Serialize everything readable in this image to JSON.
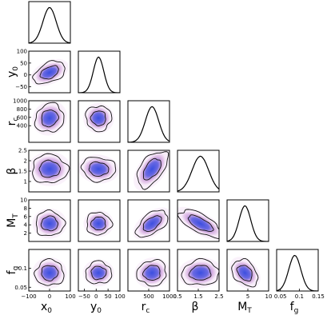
{
  "chart_data": {
    "type": "corner",
    "parameters": [
      {
        "key": "x0",
        "base": "x",
        "sub": "0",
        "range": [
          -100,
          100
        ],
        "ticks": [
          {
            "v": -100,
            "t": "−100"
          },
          {
            "v": 0,
            "t": "0"
          },
          {
            "v": 100,
            "t": "100"
          }
        ],
        "peak": 0,
        "sigma": 32
      },
      {
        "key": "y0",
        "base": "y",
        "sub": "0",
        "range": [
          -75,
          100
        ],
        "ticks": [
          {
            "v": -50,
            "t": "−50"
          },
          {
            "v": 0,
            "t": "0"
          },
          {
            "v": 50,
            "t": "50"
          },
          {
            "v": 100,
            "t": "100"
          }
        ],
        "peak": 10,
        "sigma": 22
      },
      {
        "key": "rc",
        "base": "r",
        "sub": "c",
        "range": [
          0,
          1000
        ],
        "ticks": [
          {
            "v": 400,
            "t": "400"
          },
          {
            "v": 600,
            "t": "600"
          },
          {
            "v": 800,
            "t": "800"
          },
          {
            "v": 1000,
            "t": "1000"
          }
        ],
        "xticks": [
          {
            "v": 500,
            "t": "500"
          },
          {
            "v": 1000,
            "t": "1000"
          }
        ],
        "peak": 580,
        "sigma": 160
      },
      {
        "key": "beta",
        "base": "β",
        "sub": "",
        "range": [
          0.5,
          2.5
        ],
        "ticks": [
          {
            "v": 1,
            "t": "1"
          },
          {
            "v": 1.5,
            "t": "1.5"
          },
          {
            "v": 2,
            "t": "2"
          },
          {
            "v": 2.5,
            "t": "2.5"
          }
        ],
        "xticks": [
          {
            "v": 0.5,
            "t": "0.5"
          },
          {
            "v": 1.5,
            "t": "1.5"
          },
          {
            "v": 2.5,
            "t": "2.5"
          }
        ],
        "peak": 1.6,
        "sigma": 0.4
      },
      {
        "key": "MT",
        "base": "M",
        "sub": "T",
        "range": [
          0,
          10
        ],
        "ticks": [
          {
            "v": 2,
            "t": "2"
          },
          {
            "v": 4,
            "t": "4"
          },
          {
            "v": 6,
            "t": "6"
          },
          {
            "v": 8,
            "t": "8"
          },
          {
            "v": 10,
            "t": "10"
          }
        ],
        "xticks": [
          {
            "v": 5,
            "t": "5"
          },
          {
            "v": 10,
            "t": "10"
          }
        ],
        "peak": 4.3,
        "sigma": 1.4
      },
      {
        "key": "fg",
        "base": "f",
        "sub": "g",
        "range": [
          0.04,
          0.15
        ],
        "ticks": [
          {
            "v": 0.05,
            "t": "0.05"
          },
          {
            "v": 0.1,
            "t": "0.1"
          }
        ],
        "xticks": [
          {
            "v": 0.05,
            "t": "0.05"
          },
          {
            "v": 0.1,
            "t": "0.1"
          },
          {
            "v": 0.15,
            "t": "0.15"
          }
        ],
        "peak": 0.088,
        "sigma": 0.016
      }
    ],
    "correlations": {
      "y0-x0": 0.3,
      "rc-x0": 0.1,
      "rc-y0": 0.2,
      "beta-x0": 0.0,
      "beta-y0": 0.1,
      "beta-rc": 0.75,
      "MT-x0": 0.0,
      "MT-y0": 0.0,
      "MT-rc": 0.45,
      "MT-beta": -0.55,
      "fg-x0": 0.0,
      "fg-y0": 0.0,
      "fg-rc": 0.05,
      "fg-beta": 0.05,
      "fg-MT": -0.35
    },
    "colors": {
      "density_core": "#3b4fe0",
      "density_outer": "#c58fd4",
      "contour": "#111111",
      "hist": "#000000"
    }
  }
}
